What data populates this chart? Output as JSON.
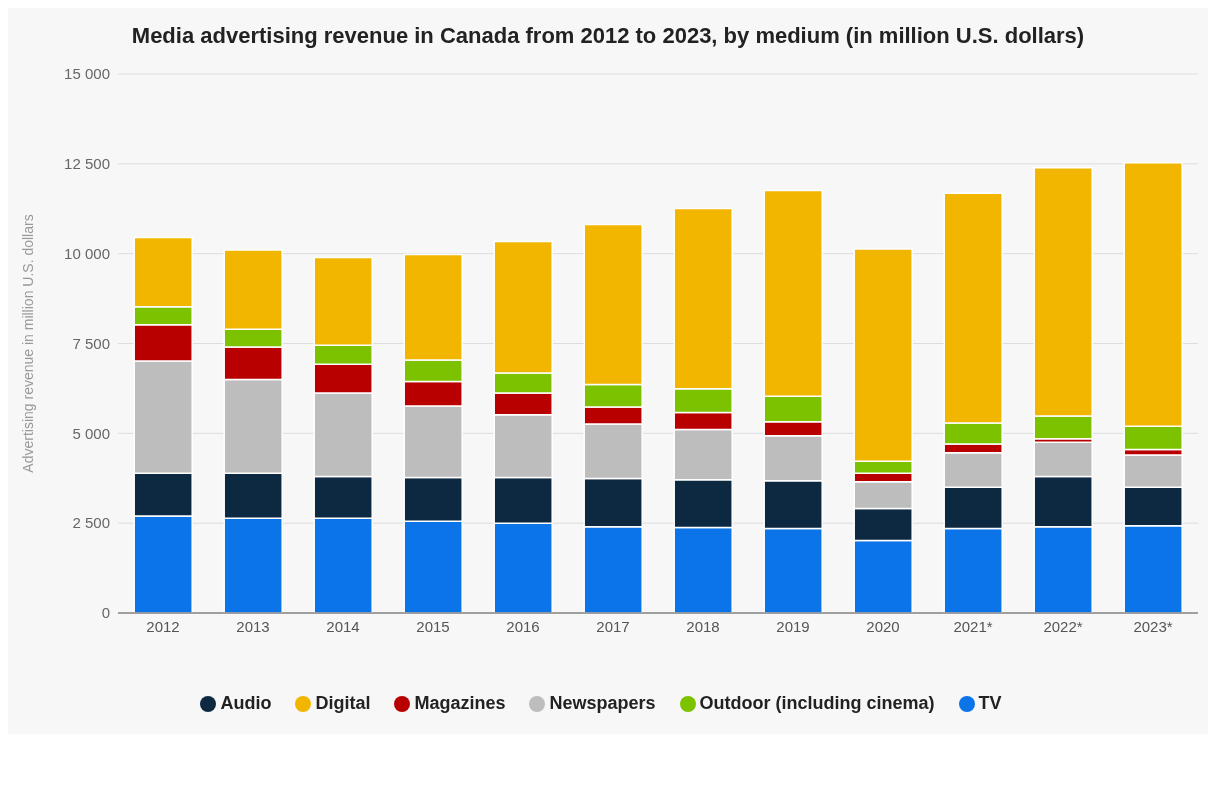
{
  "chart_data": {
    "type": "bar",
    "title": "Media advertising revenue in Canada from 2012 to 2023, by medium (in million U.S. dollars)",
    "ylabel": "Advertising revenue in million U.S. dollars",
    "categories": [
      "2012",
      "2013",
      "2014",
      "2015",
      "2016",
      "2017",
      "2018",
      "2019",
      "2020",
      "2021*",
      "2022*",
      "2023*"
    ],
    "stacked": true,
    "series": [
      {
        "name": "TV",
        "color": "#0a74e8",
        "values": [
          2700,
          2640,
          2640,
          2550,
          2500,
          2400,
          2380,
          2350,
          2020,
          2350,
          2400,
          2430
        ]
      },
      {
        "name": "Audio",
        "color": "#0d2841",
        "values": [
          1190,
          1250,
          1160,
          1220,
          1270,
          1340,
          1330,
          1330,
          890,
          1150,
          1400,
          1070
        ]
      },
      {
        "name": "Newspapers",
        "color": "#bdbdbd",
        "values": [
          3120,
          2610,
          2320,
          1990,
          1750,
          1520,
          1400,
          1250,
          740,
          960,
          950,
          900
        ]
      },
      {
        "name": "Magazines",
        "color": "#b80000",
        "values": [
          1010,
          900,
          800,
          680,
          600,
          470,
          470,
          390,
          240,
          240,
          100,
          150
        ]
      },
      {
        "name": "Outdoor (including cinema)",
        "color": "#7cc200",
        "values": [
          500,
          500,
          530,
          600,
          560,
          630,
          660,
          710,
          330,
          590,
          630,
          650
        ]
      },
      {
        "name": "Digital",
        "color": "#f2b600",
        "values": [
          1930,
          2200,
          2440,
          2940,
          3660,
          4450,
          5020,
          5730,
          5910,
          6390,
          6910,
          7330
        ]
      }
    ],
    "ylim": [
      0,
      15000
    ],
    "yticks": [
      0,
      {
        "value": 2500,
        "label": "2 500"
      },
      {
        "value": 5000,
        "label": "5 000"
      },
      {
        "value": 7500,
        "label": "7 500"
      },
      {
        "value": 10000,
        "label": "10 000"
      },
      {
        "value": 12500,
        "label": "12 500"
      },
      {
        "value": 15000,
        "label": "15 000"
      }
    ],
    "grid": "y",
    "legend": "bottom"
  }
}
